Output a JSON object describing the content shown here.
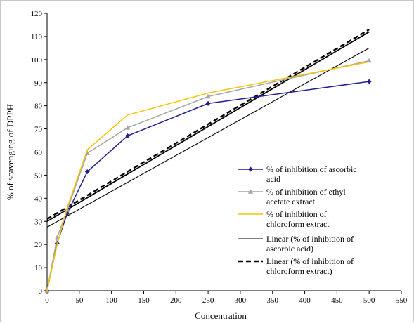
{
  "chart_data": {
    "type": "line",
    "title": "",
    "xlabel": "Concentration",
    "ylabel": "% of scavenging of DPPH",
    "xlim": [
      0,
      550
    ],
    "ylim": [
      0,
      120
    ],
    "x_ticks": [
      0,
      50,
      100,
      150,
      200,
      250,
      300,
      350,
      400,
      450,
      500,
      550
    ],
    "y_ticks": [
      0,
      10,
      20,
      30,
      40,
      50,
      60,
      70,
      80,
      90,
      100,
      110,
      120
    ],
    "grid": false,
    "legend_position": "right",
    "series": [
      {
        "name": "% of inhibition of ascorbic acid",
        "color": "#1f1f8f",
        "marker": "diamond",
        "dash": "solid",
        "x": [
          0,
          15.6,
          31.25,
          62.5,
          125,
          250,
          500
        ],
        "y": [
          0,
          20.5,
          33.5,
          51.5,
          67,
          81,
          90.5
        ]
      },
      {
        "name": "% of inhibition of ethyl acetate extract",
        "color": "#a6a6a6",
        "marker": "triangle",
        "dash": "solid",
        "x": [
          0,
          15.6,
          31.25,
          62.5,
          125,
          250,
          500
        ],
        "y": [
          0,
          23,
          35,
          59.5,
          70.5,
          84,
          99.5
        ]
      },
      {
        "name": "% of inhibition of chloroform extract",
        "color": "#f5c400",
        "marker": "none",
        "dash": "solid",
        "x": [
          0,
          15.6,
          31.25,
          62.5,
          125,
          250,
          500
        ],
        "y": [
          0,
          20,
          36,
          61,
          76,
          85.5,
          99
        ]
      },
      {
        "name": "Linear (% of inhibition of ascorbic acid)",
        "color": "#000000",
        "marker": "none",
        "dash": "solid",
        "x": [
          0,
          500
        ],
        "y": [
          27.5,
          105
        ]
      },
      {
        "name": "Linear (% of inhibition of chloroform extract)",
        "color": "#000000",
        "marker": "none",
        "dash": "dashed",
        "x": [
          0,
          500
        ],
        "y": [
          31,
          113
        ]
      }
    ],
    "extra_lines": [
      {
        "color": "#000000",
        "dash": "solid",
        "x": [
          0,
          500
        ],
        "y": [
          30,
          112
        ]
      }
    ],
    "legend_lines": [
      [
        "% of inhibition of ascorbic",
        "acid"
      ],
      [
        "% of inhibition of ethyl",
        "acetate extract"
      ],
      [
        "% of inhibition of",
        "chloroform extract"
      ],
      [
        "Linear (% of inhibition of",
        "ascorbic acid)"
      ],
      [
        "Linear (% of inhibition of",
        "chloroform extract)"
      ]
    ]
  }
}
